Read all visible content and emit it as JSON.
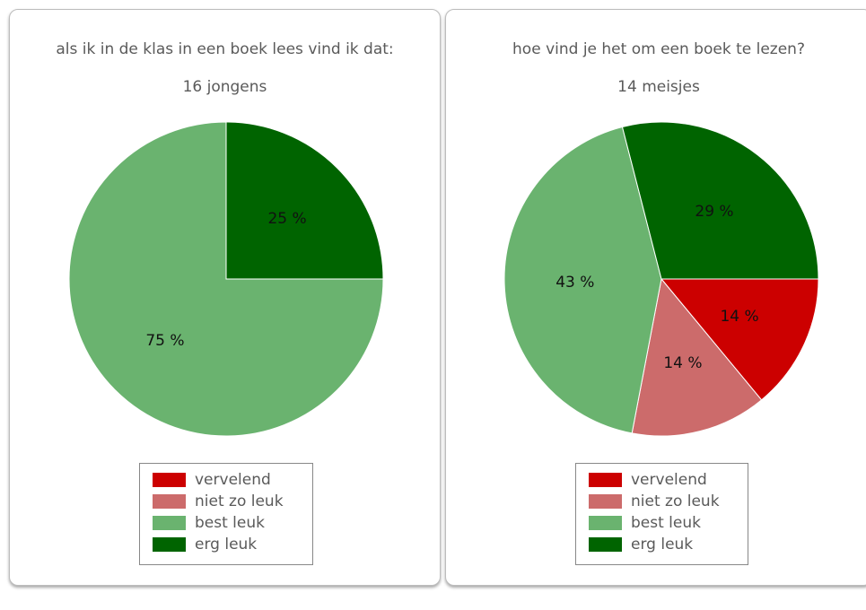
{
  "legend": [
    {
      "label": "vervelend",
      "color": "#cc0000"
    },
    {
      "label": "niet zo leuk",
      "color": "#cc6b6b"
    },
    {
      "label": "best leuk",
      "color": "#6ab36f"
    },
    {
      "label": "erg leuk",
      "color": "#006400"
    }
  ],
  "chart_data": [
    {
      "type": "pie",
      "title": "als ik in de klas in een boek lees vind ik dat:",
      "subtitle": "16 jongens",
      "categories": [
        "vervelend",
        "niet zo leuk",
        "best leuk",
        "erg leuk"
      ],
      "values": [
        0,
        0,
        75,
        25
      ],
      "value_labels": [
        "",
        "",
        "75 %",
        "25 %"
      ],
      "legend_position": "bottom"
    },
    {
      "type": "pie",
      "title": "hoe vind je het om een boek te lezen?",
      "subtitle": "14 meisjes",
      "categories": [
        "vervelend",
        "niet zo leuk",
        "best leuk",
        "erg leuk"
      ],
      "values": [
        14,
        14,
        43,
        29
      ],
      "value_labels": [
        "14 %",
        "14 %",
        "43 %",
        "29 %"
      ],
      "legend_position": "bottom"
    }
  ]
}
